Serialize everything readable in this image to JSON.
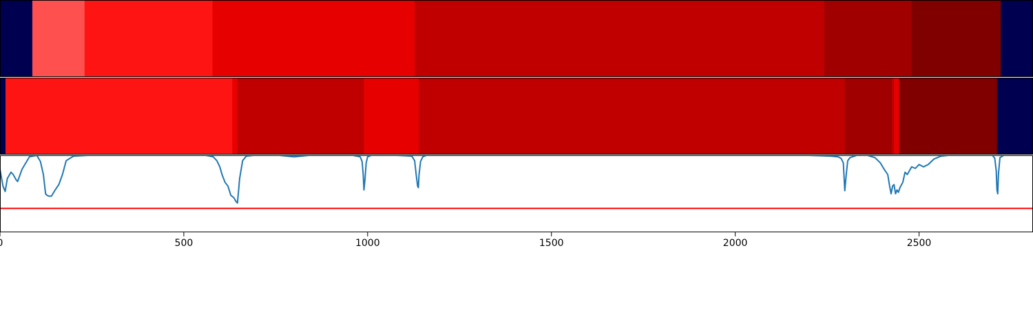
{
  "chart_data": [
    {
      "type": "heatmap",
      "title": "",
      "xlim": [
        0,
        2810
      ],
      "background_color": "#000050",
      "segments": [
        {
          "x0": 0,
          "x1": 88,
          "color": "#000050"
        },
        {
          "x0": 88,
          "x1": 230,
          "color": "#ff5050"
        },
        {
          "x0": 230,
          "x1": 578,
          "color": "#ff1414"
        },
        {
          "x0": 578,
          "x1": 1128,
          "color": "#e60000"
        },
        {
          "x0": 1128,
          "x1": 2242,
          "color": "#c00000"
        },
        {
          "x0": 2242,
          "x1": 2480,
          "color": "#a00000"
        },
        {
          "x0": 2480,
          "x1": 2722,
          "color": "#800000"
        },
        {
          "x0": 2722,
          "x1": 2810,
          "color": "#000050"
        }
      ]
    },
    {
      "type": "heatmap",
      "title": "",
      "xlim": [
        0,
        2810
      ],
      "background_color": "#000050",
      "segments": [
        {
          "x0": 0,
          "x1": 15,
          "color": "#000050"
        },
        {
          "x0": 15,
          "x1": 632,
          "color": "#ff1414"
        },
        {
          "x0": 632,
          "x1": 646,
          "color": "#e60000"
        },
        {
          "x0": 646,
          "x1": 990,
          "color": "#c00000"
        },
        {
          "x0": 990,
          "x1": 1139,
          "color": "#e60000"
        },
        {
          "x0": 1139,
          "x1": 2298,
          "color": "#c00000"
        },
        {
          "x0": 2298,
          "x1": 2426,
          "color": "#a00000"
        },
        {
          "x0": 2426,
          "x1": 2432,
          "color": "#c00000"
        },
        {
          "x0": 2432,
          "x1": 2446,
          "color": "#e60000"
        },
        {
          "x0": 2446,
          "x1": 2712,
          "color": "#800000"
        },
        {
          "x0": 2712,
          "x1": 2810,
          "color": "#000050"
        }
      ]
    },
    {
      "type": "line",
      "title": "",
      "xlabel": "",
      "ylabel": "",
      "xlim": [
        0,
        2810
      ],
      "ylim": [
        0,
        1
      ],
      "xticks": [
        0,
        500,
        1000,
        1500,
        2000,
        2500
      ],
      "tick_labels": [
        "0",
        "500",
        "1000",
        "1500",
        "2000",
        "2500"
      ],
      "series": [
        {
          "color": "#1f77b4",
          "x": [
            0,
            8,
            14,
            20,
            30,
            36,
            44,
            48,
            60,
            80,
            100,
            110,
            118,
            124,
            128,
            133,
            140,
            150,
            160,
            170,
            180,
            200,
            240,
            300,
            400,
            500,
            560,
            580,
            590,
            598,
            604,
            612,
            620,
            628,
            636,
            642,
            646,
            652,
            660,
            670,
            690,
            720,
            760,
            780,
            800,
            840,
            900,
            960,
            980,
            985,
            988,
            990,
            993,
            996,
            1000,
            1010,
            1030,
            1080,
            1120,
            1128,
            1132,
            1136,
            1138,
            1140,
            1144,
            1150,
            1160,
            1200,
            1300,
            1500,
            1800,
            2000,
            2200,
            2260,
            2280,
            2288,
            2294,
            2298,
            2302,
            2306,
            2312,
            2330,
            2360,
            2380,
            2395,
            2405,
            2415,
            2420,
            2424,
            2428,
            2432,
            2436,
            2440,
            2444,
            2448,
            2456,
            2462,
            2468,
            2474,
            2480,
            2490,
            2500,
            2512,
            2525,
            2540,
            2560,
            2580,
            2620,
            2680,
            2700,
            2706,
            2710,
            2712,
            2714,
            2716,
            2720,
            2730,
            2760,
            2810
          ],
          "y": [
            0.82,
            0.6,
            0.53,
            0.7,
            0.78,
            0.75,
            0.68,
            0.66,
            0.82,
            0.98,
            1.0,
            0.92,
            0.75,
            0.5,
            0.48,
            0.47,
            0.47,
            0.55,
            0.62,
            0.75,
            0.93,
            0.99,
            1.0,
            1.0,
            1.0,
            1.0,
            1.0,
            0.98,
            0.93,
            0.85,
            0.75,
            0.65,
            0.6,
            0.48,
            0.45,
            0.4,
            0.38,
            0.7,
            0.93,
            0.99,
            1.0,
            1.0,
            1.0,
            0.99,
            0.98,
            1.0,
            1.0,
            1.0,
            0.98,
            0.92,
            0.75,
            0.55,
            0.7,
            0.9,
            0.98,
            1.0,
            1.0,
            1.0,
            0.99,
            0.93,
            0.75,
            0.6,
            0.58,
            0.75,
            0.92,
            0.98,
            1.0,
            1.0,
            1.0,
            1.0,
            1.0,
            1.0,
            1.0,
            0.99,
            0.98,
            0.96,
            0.9,
            0.54,
            0.75,
            0.93,
            0.97,
            1.0,
            1.0,
            0.97,
            0.9,
            0.82,
            0.75,
            0.6,
            0.5,
            0.6,
            0.62,
            0.5,
            0.55,
            0.52,
            0.58,
            0.65,
            0.78,
            0.75,
            0.8,
            0.85,
            0.83,
            0.88,
            0.85,
            0.88,
            0.95,
            0.99,
            1.0,
            1.0,
            1.0,
            1.0,
            0.96,
            0.8,
            0.55,
            0.5,
            0.75,
            0.97,
            1.0,
            1.0,
            1.0
          ]
        },
        {
          "color": "#ff0000",
          "x": [
            0,
            2810
          ],
          "y": [
            0.31,
            0.31
          ]
        }
      ]
    }
  ]
}
